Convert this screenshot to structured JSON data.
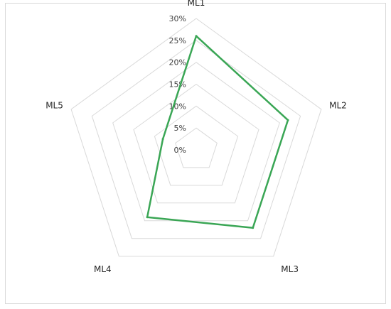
{
  "chart_data": {
    "type": "radar",
    "categories": [
      "ML1",
      "ML2",
      "ML3",
      "ML4",
      "ML5"
    ],
    "series": [
      {
        "values": [
          0.26,
          0.22,
          0.22,
          0.19,
          0.08
        ]
      }
    ],
    "rlim": [
      0,
      0.3
    ],
    "ticks": [
      "0%",
      "5%",
      "10%",
      "15%",
      "20%",
      "25%",
      "30%"
    ],
    "grid": true,
    "legend": "none",
    "colors": {
      "series": "#3aa655",
      "grid": "#d9d9d9"
    }
  }
}
